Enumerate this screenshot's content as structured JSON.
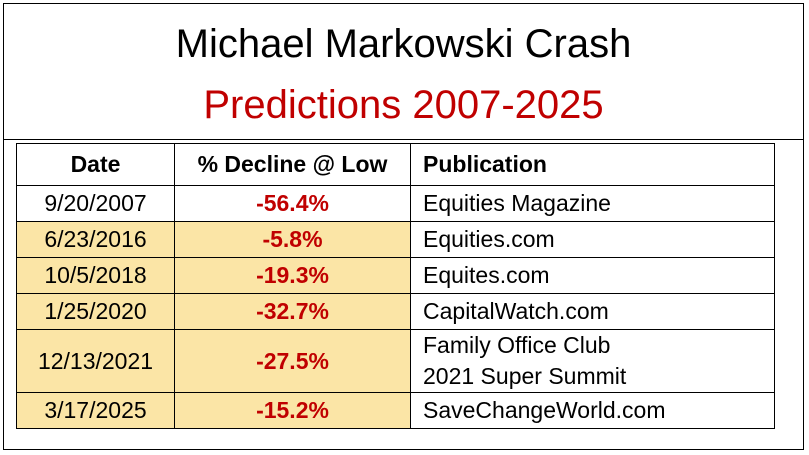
{
  "title": {
    "line1": "Michael Markowski Crash",
    "line2": "Predictions 2007-2025"
  },
  "table": {
    "headers": [
      "Date",
      "% Decline @ Low",
      "Publication"
    ],
    "rows": [
      {
        "date": "9/20/2007",
        "decline": "-56.4%",
        "publication": [
          "Equities Magazine"
        ],
        "highlight": false
      },
      {
        "date": "6/23/2016",
        "decline": "-5.8%",
        "publication": [
          "Equities.com"
        ],
        "highlight": true
      },
      {
        "date": "10/5/2018",
        "decline": "-19.3%",
        "publication": [
          "Equites.com"
        ],
        "highlight": true
      },
      {
        "date": "1/25/2020",
        "decline": "-32.7%",
        "publication": [
          "CapitalWatch.com"
        ],
        "highlight": true
      },
      {
        "date": "12/13/2021",
        "decline": "-27.5%",
        "publication": [
          "Family Office Club",
          "2021 Super Summit"
        ],
        "highlight": true
      },
      {
        "date": "3/17/2025",
        "decline": "-15.2%",
        "publication": [
          "SaveChangeWorld.com"
        ],
        "highlight": true
      }
    ]
  },
  "colors": {
    "accent_red": "#c00000",
    "highlight_yellow": "#fbe5a6"
  }
}
